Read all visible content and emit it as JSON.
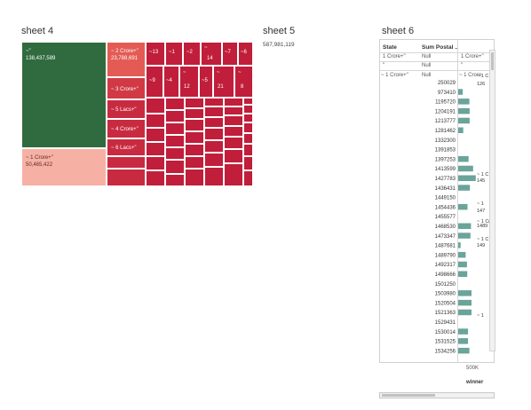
{
  "sheet4": {
    "title": "sheet 4",
    "chart_data": {
      "type": "treemap",
      "colors": {
        "dark_green": "#2f6b3f",
        "salmon": "#f6b1a4",
        "red": "#c8263f",
        "mid_red": "#d94a4a",
        "light_red": "#e27373"
      },
      "labeled": [
        {
          "label": "~\"",
          "value": "138,437,589"
        },
        {
          "label": "~ 1 Crore+\"",
          "value": "50,465,422"
        },
        {
          "label": "~ 2 Crore+\"",
          "value": "23,788,691"
        },
        {
          "label": "~ 3 Crore+\"",
          "value": ""
        },
        {
          "label": "~ 5 Lacs+\"",
          "value": ""
        },
        {
          "label": "~ 4 Crore+\"",
          "value": ""
        },
        {
          "label": "~ 6 Lacs+\"",
          "value": ""
        }
      ],
      "small_row1": [
        "~13",
        "~1",
        "~2",
        "14",
        "~7",
        "~6"
      ],
      "small_row2": [
        "~9",
        "~4",
        "12",
        "~5",
        "21",
        "8"
      ]
    }
  },
  "sheet5": {
    "title": "sheet 5",
    "value": "587,981,119"
  },
  "sheet6": {
    "title": "sheet 6",
    "headers": {
      "state": "State",
      "sum": "Sum Postal ..",
      "col3": "1 Crore"
    },
    "top_rows": [
      {
        "state": "1 Crore+\"",
        "sum": "Null",
        "col3": "1 Crore+\""
      },
      {
        "state": "\"",
        "sum": "Null",
        "col3": "\""
      },
      {
        "state": "~ 1 Crore+\"",
        "sum": "Null",
        "col3": "~ 1 Crore"
      }
    ],
    "axis_tick": "500K",
    "axis_label": "winner",
    "chart_data": {
      "type": "bar",
      "categories": [
        "250029",
        "973410",
        "1195720",
        "1204191",
        "1213777",
        "1281462",
        "1332300",
        "1391853",
        "1397253",
        "1413599",
        "1427783",
        "1436431",
        "1449150",
        "1454436",
        "1455577",
        "1468530",
        "1473347",
        "1487681",
        "1489790",
        "1492317",
        "1498666",
        "1501250",
        "1503980",
        "1520504",
        "1521363",
        "1529431",
        "1530014",
        "1531525",
        "1534256"
      ],
      "values": [
        0,
        85000,
        210000,
        215000,
        215000,
        95000,
        0,
        0,
        195000,
        280000,
        330000,
        220000,
        0,
        175000,
        0,
        240000,
        230000,
        45000,
        140000,
        165000,
        170000,
        0,
        250000,
        250000,
        250000,
        0,
        185000,
        185000,
        210000
      ],
      "xlim": [
        0,
        600000
      ],
      "annotations": [
        "~ 1 C",
        "126",
        "~ 1 C",
        "145",
        "~ 1",
        "147",
        "~ 1 Cro",
        "1489",
        "~ 1 C",
        "149",
        "~ 1"
      ]
    }
  }
}
